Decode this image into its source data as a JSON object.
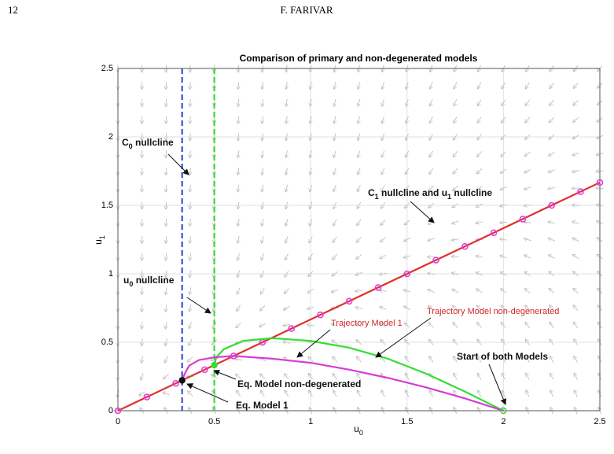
{
  "header": {
    "page_number": "12",
    "author": "F. FARIVAR"
  },
  "chart_data": {
    "type": "line",
    "title": "Comparison of primary and non-degenerated models",
    "x_label": {
      "base": "u",
      "sub": "0"
    },
    "y_label": {
      "base": "u",
      "sub": "1"
    },
    "xlim": [
      0,
      2.5
    ],
    "ylim": [
      0,
      2.5
    ],
    "xticks": [
      0,
      0.5,
      1,
      1.5,
      2,
      2.5
    ],
    "yticks": [
      0,
      0.5,
      1,
      1.5,
      2,
      2.5
    ],
    "grid": true,
    "vlines": [
      {
        "x": 0.333,
        "color": "#3b4fd6",
        "dash": true
      },
      {
        "x": 0.5,
        "color": "#33dd33",
        "dash": true
      }
    ],
    "series": [
      {
        "color": "#e0302a",
        "line": true,
        "marker": false,
        "x": [
          0,
          2.5
        ],
        "values": [
          0,
          1.667
        ]
      },
      {
        "color": "#e040e0",
        "line": false,
        "marker": true,
        "x": [
          0,
          0.15,
          0.3,
          0.45,
          0.6,
          0.75,
          0.9,
          1.05,
          1.2,
          1.35,
          1.5,
          1.65,
          1.8,
          1.95,
          2.1,
          2.25,
          2.4,
          2.5
        ],
        "values": [
          0,
          0.1,
          0.2,
          0.3,
          0.4,
          0.5,
          0.6,
          0.7,
          0.8,
          0.9,
          1.0,
          1.1,
          1.2,
          1.3,
          1.4,
          1.5,
          1.6,
          1.667
        ]
      },
      {
        "color": "#33dd33",
        "line": true,
        "marker": false,
        "x": [
          2,
          1.8,
          1.6,
          1.4,
          1.2,
          1.0,
          0.8,
          0.65,
          0.55,
          0.51,
          0.5
        ],
        "values": [
          0,
          0.14,
          0.27,
          0.38,
          0.46,
          0.51,
          0.53,
          0.51,
          0.45,
          0.39,
          0.333
        ]
      },
      {
        "color": "#d63cd6",
        "line": true,
        "marker": false,
        "x": [
          2,
          1.8,
          1.6,
          1.4,
          1.2,
          1.0,
          0.8,
          0.6,
          0.5,
          0.42,
          0.37,
          0.35,
          0.333
        ],
        "values": [
          0,
          0.09,
          0.17,
          0.24,
          0.3,
          0.35,
          0.38,
          0.4,
          0.39,
          0.37,
          0.33,
          0.28,
          0.222
        ]
      }
    ],
    "points": [
      {
        "x": 0.333,
        "value": 0.222,
        "color": "#111111"
      },
      {
        "x": 0.5,
        "value": 0.333,
        "color": "#33dd33"
      },
      {
        "x": 2,
        "value": 0,
        "color": "#33dd33",
        "hollow": true
      }
    ],
    "annotations": [
      {
        "bold": true,
        "color": "#111111",
        "parts": [
          {
            "text": "C"
          },
          {
            "text": "0",
            "sub": true
          },
          {
            "text": " nullcline"
          }
        ]
      },
      {
        "bold": true,
        "color": "#111111",
        "parts": [
          {
            "text": "C"
          },
          {
            "text": "1",
            "sub": true
          },
          {
            "text": " nullcline and u"
          },
          {
            "text": "1",
            "sub": true
          },
          {
            "text": " nullcline"
          }
        ]
      },
      {
        "bold": true,
        "color": "#111111",
        "parts": [
          {
            "text": "u"
          },
          {
            "text": "0",
            "sub": true
          },
          {
            "text": " nullcline"
          }
        ]
      },
      {
        "bold": false,
        "color": "#d22a2a",
        "parts": [
          {
            "text": "Trajectory Model 1"
          }
        ]
      },
      {
        "bold": false,
        "color": "#d22a2a",
        "parts": [
          {
            "text": "Trajectory Model non-degenerated"
          }
        ]
      },
      {
        "bold": true,
        "color": "#111111",
        "parts": [
          {
            "text": "Start of both Models"
          }
        ]
      },
      {
        "bold": true,
        "color": "#111111",
        "parts": [
          {
            "text": "Eq. Model non-degenerated"
          }
        ]
      },
      {
        "bold": true,
        "color": "#111111",
        "parts": [
          {
            "text": "Eq. Model 1"
          }
        ]
      }
    ]
  }
}
